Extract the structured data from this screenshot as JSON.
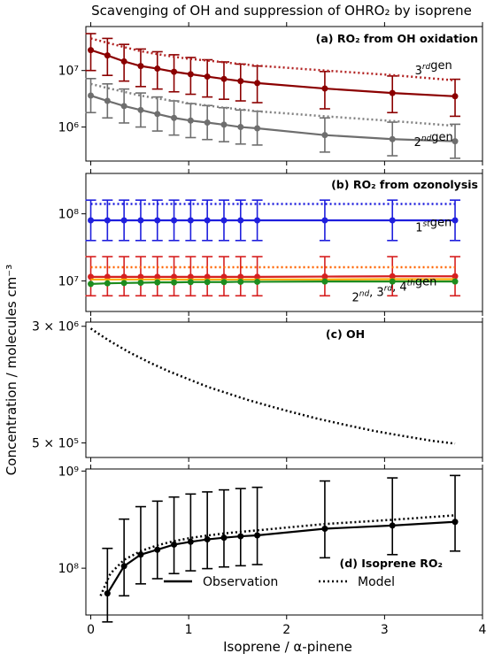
{
  "figure": {
    "title": "Scavenging of OH and suppression of OHRO₂ by isoprene",
    "ylabel": "Concentration / molecules cm⁻³",
    "xlabel": "Isoprene / α-pinene",
    "xticks": [
      0,
      1,
      2,
      3,
      4
    ],
    "xlim": [
      -0.05,
      4.0
    ]
  },
  "chart_data": [
    {
      "type": "line",
      "panel_label": "(a) RO₂ from OH oxidation",
      "yscale": "log",
      "ylim": [
        250000.0,
        60000000.0
      ],
      "yticks": [
        {
          "value": 1000000.0,
          "label": "10⁶"
        },
        {
          "value": 10000000.0,
          "label": "10⁷"
        }
      ],
      "x": [
        0.0,
        0.17,
        0.34,
        0.51,
        0.68,
        0.85,
        1.02,
        1.19,
        1.36,
        1.53,
        1.7,
        2.39,
        3.08,
        3.72
      ],
      "series": [
        {
          "name": "3rd gen observation",
          "color": "#8b0000",
          "style": "solid",
          "markers": true,
          "values": [
            23000000.0,
            18500000.0,
            14500000.0,
            12000000.0,
            10800000.0,
            9500000.0,
            8600000.0,
            7800000.0,
            7100000.0,
            6500000.0,
            6000000.0,
            4800000.0,
            4000000.0,
            3500000.0
          ],
          "err_low": [
            10000000.0,
            8200000.0,
            6500000.0,
            5200000.0,
            4700000.0,
            4200000.0,
            3800000.0,
            3400000.0,
            3100000.0,
            2900000.0,
            2700000.0,
            2100000.0,
            1800000.0,
            1550000.0
          ],
          "err_high": [
            45000000.0,
            37000000.0,
            29000000.0,
            24000000.0,
            21500000.0,
            19000000.0,
            17000000.0,
            15500000.0,
            14200000.0,
            13000000.0,
            12000000.0,
            9600000.0,
            8000000.0,
            7000000.0
          ]
        },
        {
          "name": "3rd gen model",
          "color": "#b22222",
          "style": "dotted",
          "markers": false,
          "values": [
            37000000.0,
            31000000.0,
            26000000.0,
            22000000.0,
            19500000.0,
            17500000.0,
            16000000.0,
            15000000.0,
            14000000.0,
            13000000.0,
            12200000.0,
            10000000.0,
            8300000.0,
            6700000.0
          ]
        },
        {
          "name": "2nd gen observation",
          "color": "#6e6e6e",
          "style": "solid",
          "markers": true,
          "values": [
            3600000.0,
            2900000.0,
            2350000.0,
            2000000.0,
            1700000.0,
            1450000.0,
            1300000.0,
            1200000.0,
            1100000.0,
            1000000.0,
            950000.0,
            720000.0,
            610000.0,
            560000.0
          ],
          "err_low": [
            1800000.0,
            1450000.0,
            1180000.0,
            1000000.0,
            850000.0,
            720000.0,
            650000.0,
            600000.0,
            550000.0,
            500000.0,
            480000.0,
            360000.0,
            310000.0,
            280000.0
          ],
          "err_high": [
            7200000.0,
            5800000.0,
            4700000.0,
            4000000.0,
            3400000.0,
            2900000.0,
            2600000.0,
            2400000.0,
            2200000.0,
            2000000.0,
            1900000.0,
            1450000.0,
            1220000.0,
            1120000.0
          ]
        },
        {
          "name": "2nd gen model",
          "color": "#808080",
          "style": "dotted",
          "markers": false,
          "values": [
            5800000.0,
            4900000.0,
            4200000.0,
            3600000.0,
            3200000.0,
            2900000.0,
            2600000.0,
            2400000.0,
            2200000.0,
            2050000.0,
            1900000.0,
            1550000.0,
            1280000.0,
            1050000.0
          ]
        }
      ],
      "annotations": [
        {
          "base": "3",
          "sup": "rd",
          "suffix": "gen",
          "at": [
            3.5,
            8500000.0
          ]
        },
        {
          "base": "2",
          "sup": "nd",
          "suffix": "gen",
          "at": [
            3.5,
            460000.0
          ]
        }
      ]
    },
    {
      "type": "line",
      "panel_label": "(b) RO₂ from ozonolysis",
      "yscale": "log",
      "ylim": [
        3500000.0,
        400000000.0
      ],
      "yticks": [
        {
          "value": 10000000.0,
          "label": "10⁷"
        },
        {
          "value": 100000000.0,
          "label": "10⁸"
        }
      ],
      "x": [
        0.0,
        0.17,
        0.34,
        0.51,
        0.68,
        0.85,
        1.02,
        1.19,
        1.36,
        1.53,
        1.7,
        2.39,
        3.08,
        3.72
      ],
      "series": [
        {
          "name": "1st gen observation",
          "color": "#1f1fdd",
          "style": "solid",
          "markers": true,
          "values": [
            80000000.0,
            80000000.0,
            80000000.0,
            80000000.0,
            80000000.0,
            80000000.0,
            80000000.0,
            80000000.0,
            80000000.0,
            80000000.0,
            80000000.0,
            80000000.0,
            80000000.0,
            80000000.0
          ],
          "err_low": [
            40000000.0,
            40000000.0,
            40000000.0,
            40000000.0,
            40000000.0,
            40000000.0,
            40000000.0,
            40000000.0,
            40000000.0,
            40000000.0,
            40000000.0,
            40000000.0,
            40000000.0,
            40000000.0
          ],
          "err_high": [
            160000000.0,
            160000000.0,
            160000000.0,
            160000000.0,
            160000000.0,
            160000000.0,
            160000000.0,
            160000000.0,
            160000000.0,
            160000000.0,
            160000000.0,
            160000000.0,
            160000000.0,
            160000000.0
          ]
        },
        {
          "name": "1st gen model",
          "color": "#1f1fdd",
          "style": "dotted",
          "markers": false,
          "values": [
            140000000.0,
            140000000.0,
            140000000.0,
            140000000.0,
            140000000.0,
            140000000.0,
            140000000.0,
            140000000.0,
            140000000.0,
            140000000.0,
            140000000.0,
            140000000.0,
            140000000.0,
            140000000.0
          ]
        },
        {
          "name": "4th gen observation",
          "color": "#d62020",
          "style": "solid",
          "markers": true,
          "values": [
            11500000.0,
            11500000.0,
            11500000.0,
            11500000.0,
            11500000.0,
            11500000.0,
            11500000.0,
            11500000.0,
            11500000.0,
            11500000.0,
            11500000.0,
            11600000.0,
            11700000.0,
            11700000.0
          ],
          "err_low": [
            6000000.0,
            6000000.0,
            6000000.0,
            6000000.0,
            6000000.0,
            6000000.0,
            6000000.0,
            6000000.0,
            6000000.0,
            6000000.0,
            6000000.0,
            6000000.0,
            6000000.0,
            6000000.0
          ],
          "err_high": [
            23000000.0,
            23000000.0,
            23000000.0,
            23000000.0,
            23000000.0,
            23000000.0,
            23000000.0,
            23000000.0,
            23000000.0,
            23000000.0,
            23000000.0,
            23000000.0,
            23000000.0,
            23000000.0
          ]
        },
        {
          "name": "4th gen model",
          "color": "#ff6600",
          "style": "dotted",
          "markers": false,
          "values": [
            16000000.0,
            16000000.0,
            16000000.0,
            16000000.0,
            16000000.0,
            16000000.0,
            16000000.0,
            16000000.0,
            16000000.0,
            16000000.0,
            16000000.0,
            16000000.0,
            16000000.0,
            16000000.0
          ]
        },
        {
          "name": "3rd gen observation",
          "color": "#ffaa00",
          "style": "solid",
          "markers": false,
          "values": [
            10500000.0,
            10500000.0,
            10500000.0,
            10500000.0,
            10500000.0,
            10500000.0,
            10500000.0,
            10500000.0,
            10500000.0,
            10500000.0,
            10500000.0,
            10500000.0,
            10600000.0,
            10600000.0
          ]
        },
        {
          "name": "2nd gen observation",
          "color": "#1e8c1e",
          "style": "solid",
          "markers": true,
          "values": [
            9000000.0,
            9200000.0,
            9300000.0,
            9400000.0,
            9500000.0,
            9500000.0,
            9600000.0,
            9600000.0,
            9600000.0,
            9700000.0,
            9700000.0,
            9800000.0,
            9800000.0,
            9800000.0
          ]
        }
      ],
      "annotations": [
        {
          "base": "1",
          "sup": "st",
          "suffix": "gen",
          "at": [
            3.5,
            55000000.0
          ]
        },
        {
          "parts": [
            {
              "base": "2",
              "sup": "nd"
            },
            {
              "base": ", 3",
              "sup": "rd"
            },
            {
              "base": ", 4",
              "sup": "th"
            }
          ],
          "suffix": "gen",
          "at": [
            3.1,
            5000000.0
          ]
        }
      ]
    },
    {
      "type": "line",
      "panel_label": "(c) OH",
      "yscale": "log",
      "ylim": [
        400000.0,
        3200000.0
      ],
      "yticks": [
        {
          "value": 500000.0,
          "label": "5 × 10⁵"
        },
        {
          "value": 3000000.0,
          "label": "3 × 10⁶"
        }
      ],
      "x": [
        0.0,
        0.1,
        0.2,
        0.3,
        0.4,
        0.6,
        0.8,
        1.0,
        1.2,
        1.4,
        1.6,
        1.8,
        2.0,
        2.3,
        2.6,
        2.9,
        3.2,
        3.5,
        3.72
      ],
      "series": [
        {
          "name": "OH model",
          "color": "#000000",
          "style": "dotted",
          "markers": false,
          "values": [
            2900000.0,
            2620000.0,
            2380000.0,
            2180000.0,
            2000000.0,
            1720000.0,
            1500000.0,
            1330000.0,
            1180000.0,
            1070000.0,
            970000.0,
            890000.0,
            820000.0,
            730000.0,
            660000.0,
            600000.0,
            555000.0,
            515000.0,
            495000.0
          ]
        }
      ],
      "annotations": []
    },
    {
      "type": "line",
      "panel_label": "(d) Isoprene RO₂",
      "yscale": "log",
      "ylim": [
        33000000.0,
        1050000000.0
      ],
      "yticks": [
        {
          "value": 100000000.0,
          "label": "10⁸"
        },
        {
          "value": 1000000000.0,
          "label": "10⁹"
        }
      ],
      "x": [
        0.17,
        0.34,
        0.51,
        0.68,
        0.85,
        1.02,
        1.19,
        1.36,
        1.53,
        1.7,
        2.39,
        3.08,
        3.72
      ],
      "series": [
        {
          "name": "Observation",
          "color": "#000000",
          "style": "solid",
          "markers": true,
          "values": [
            55000000.0,
            105000000.0,
            138000000.0,
            155000000.0,
            175000000.0,
            187000000.0,
            198000000.0,
            206000000.0,
            213000000.0,
            218000000.0,
            255000000.0,
            275000000.0,
            300000000.0
          ],
          "err_low": [
            28000000.0,
            52000000.0,
            69000000.0,
            78000000.0,
            88000000.0,
            94000000.0,
            99000000.0,
            103000000.0,
            106000000.0,
            109000000.0,
            128000000.0,
            138000000.0,
            150000000.0
          ],
          "err_high": [
            160000000.0,
            320000000.0,
            430000000.0,
            490000000.0,
            540000000.0,
            580000000.0,
            610000000.0,
            640000000.0,
            660000000.0,
            680000000.0,
            790000000.0,
            850000000.0,
            900000000.0
          ]
        }
      ],
      "model_line": {
        "name": "Model",
        "color": "#000000",
        "style": "dotted",
        "x": [
          0.1,
          0.2,
          0.34,
          0.51,
          0.68,
          0.85,
          1.02,
          1.19,
          1.36,
          1.53,
          1.7,
          2.0,
          2.39,
          3.08,
          3.72
        ],
        "values": [
          52000000.0,
          88000000.0,
          122000000.0,
          150000000.0,
          172000000.0,
          190000000.0,
          205000000.0,
          217000000.0,
          228000000.0,
          237000000.0,
          245000000.0,
          262000000.0,
          285000000.0,
          315000000.0,
          350000000.0
        ]
      },
      "legend": {
        "placement": "lower-center",
        "entries": [
          {
            "label": "Observation",
            "style": "solid",
            "color": "#000000"
          },
          {
            "label": "Model",
            "style": "dotted",
            "color": "#000000"
          }
        ]
      },
      "annotations": []
    }
  ]
}
